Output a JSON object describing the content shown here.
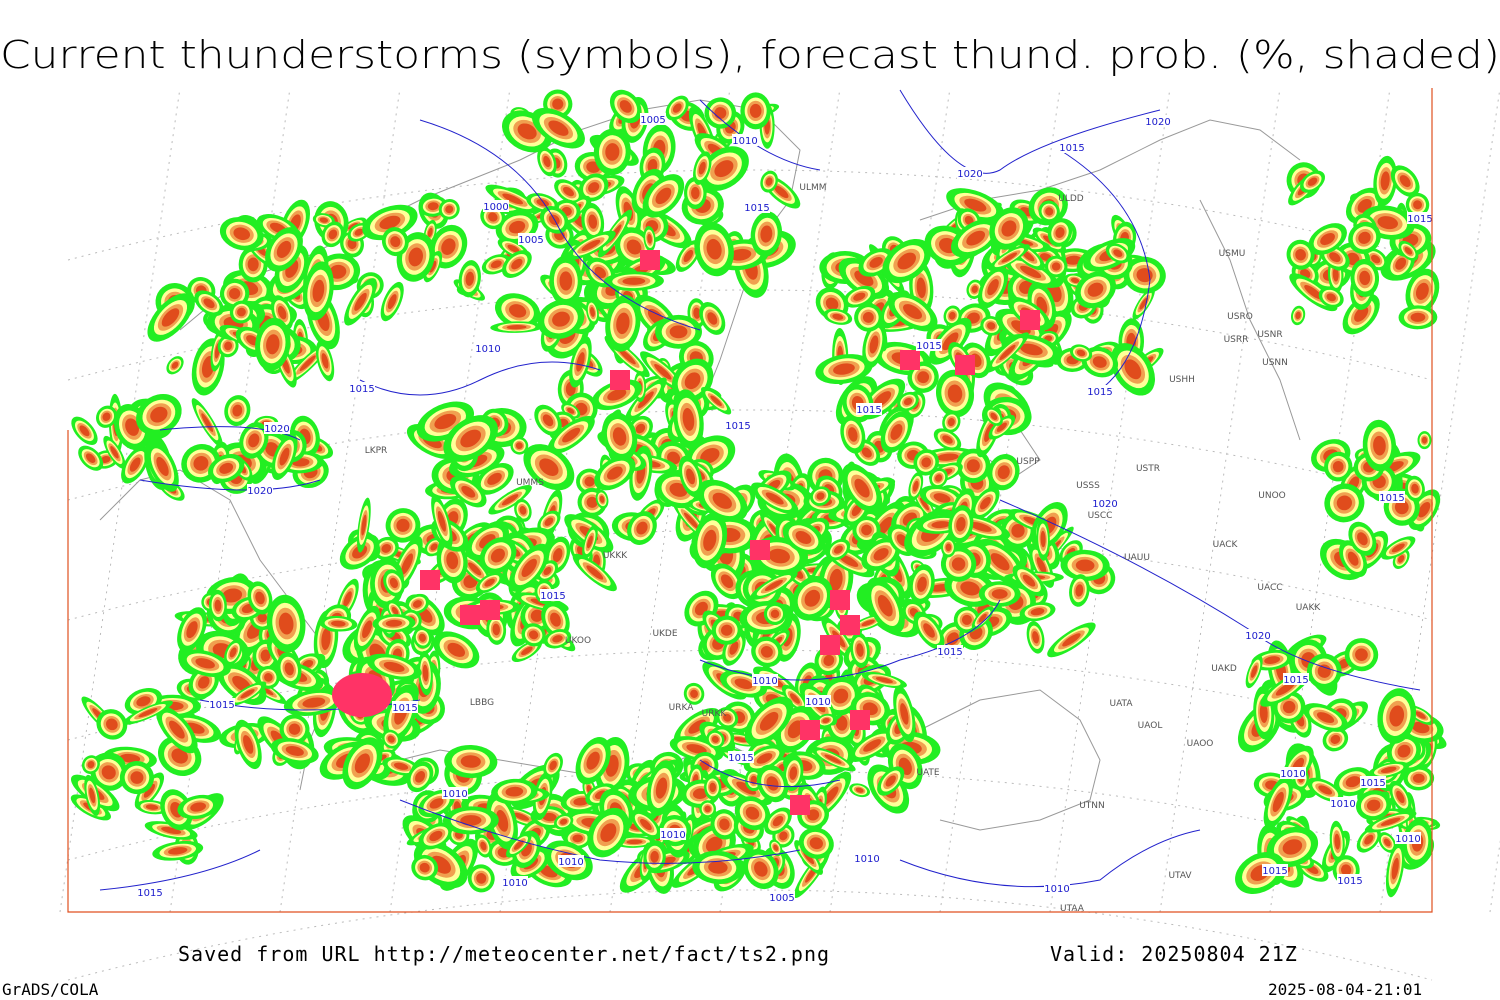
{
  "header": {
    "title": "Current thunderstorms (symbols), forecast thund. prob. (%, shaded)"
  },
  "footer": {
    "source": "Saved from URL http://meteocenter.net/fact/ts2.png",
    "valid": "Valid: 20250804 21Z",
    "software": "GrADS/COLA",
    "timestamp": "2025-08-04-21:01"
  },
  "isobars": [
    1005,
    1010,
    1000,
    1005,
    1015,
    1020,
    1015,
    1020,
    1010,
    1015,
    1015,
    1015,
    1015,
    1015,
    1020,
    1020,
    1020,
    1015,
    1015,
    1020,
    1015,
    1010,
    1010,
    1015,
    1015,
    1015,
    1010,
    1010,
    1015,
    1010,
    1010,
    1010,
    1010,
    1010,
    1010,
    1015,
    1010,
    1005,
    1015,
    1015,
    1015,
    1015
  ],
  "stations": [
    "ULMM",
    "ULDD",
    "USMU",
    "USRO",
    "USRR",
    "USNR",
    "USNN",
    "USHH",
    "USPP",
    "USSS",
    "USTR",
    "UNOO",
    "USCC",
    "UACK",
    "UAUU",
    "UACC",
    "UAKK",
    "UAKD",
    "UATA",
    "UAOL",
    "UAOO",
    "UATE",
    "UTNN",
    "UTAV",
    "UTAA",
    "LKPR",
    "UMMS",
    "UKKK",
    "UKOO",
    "UKDE",
    "URKA",
    "URKK",
    "LBBG"
  ]
}
